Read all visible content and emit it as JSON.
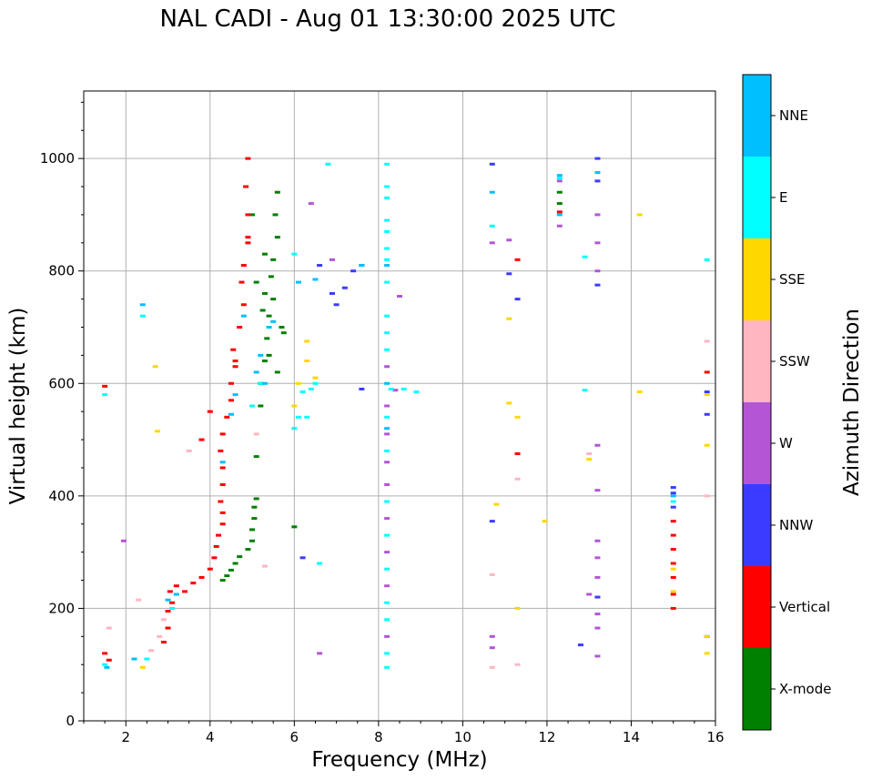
{
  "chart_data": {
    "type": "scatter",
    "title": "NAL CADI - Aug 01 13:30:00 2025 UTC",
    "xlabel": "Frequency (MHz)",
    "ylabel": "Virtual height (km)",
    "xlim": [
      1,
      16
    ],
    "ylim": [
      0,
      1120
    ],
    "xticks": [
      2,
      4,
      6,
      8,
      10,
      12,
      14,
      16
    ],
    "yticks": [
      0,
      200,
      400,
      600,
      800,
      1000
    ],
    "grid": true,
    "colorbar": {
      "label": "Azimuth Direction",
      "categories": [
        {
          "name": "X-mode",
          "color": "#008000"
        },
        {
          "name": "Vertical",
          "color": "#ff0000"
        },
        {
          "name": "NNW",
          "color": "#3b3bff"
        },
        {
          "name": "W",
          "color": "#b455d6"
        },
        {
          "name": "SSW",
          "color": "#ffb6c1"
        },
        {
          "name": "SSE",
          "color": "#ffd700"
        },
        {
          "name": "E",
          "color": "#00ffff"
        },
        {
          "name": "NNE",
          "color": "#00bfff"
        }
      ]
    },
    "series": [
      {
        "name": "X-mode",
        "points": [
          [
            4.3,
            250
          ],
          [
            4.4,
            258
          ],
          [
            4.5,
            268
          ],
          [
            4.6,
            280
          ],
          [
            4.7,
            292
          ],
          [
            4.9,
            305
          ],
          [
            5.0,
            320
          ],
          [
            5.0,
            340
          ],
          [
            5.05,
            360
          ],
          [
            5.05,
            380
          ],
          [
            5.1,
            395
          ],
          [
            5.1,
            470
          ],
          [
            5.2,
            560
          ],
          [
            5.2,
            600
          ],
          [
            5.3,
            640
          ],
          [
            5.35,
            680
          ],
          [
            5.4,
            720
          ],
          [
            5.3,
            760
          ],
          [
            5.45,
            790
          ],
          [
            5.5,
            820
          ],
          [
            5.6,
            860
          ],
          [
            5.55,
            900
          ],
          [
            5.6,
            940
          ],
          [
            5.7,
            700
          ],
          [
            5.25,
            730
          ],
          [
            5.5,
            750
          ],
          [
            5.4,
            650
          ],
          [
            6.0,
            345
          ],
          [
            5.3,
            830
          ],
          [
            5.0,
            900
          ],
          [
            5.1,
            780
          ],
          [
            5.6,
            620
          ],
          [
            5.75,
            690
          ],
          [
            12.3,
            920
          ],
          [
            12.3,
            940
          ],
          [
            15.8,
            150
          ]
        ]
      },
      {
        "name": "Vertical",
        "points": [
          [
            1.5,
            595
          ],
          [
            1.5,
            120
          ],
          [
            1.6,
            108
          ],
          [
            2.9,
            140
          ],
          [
            3.0,
            165
          ],
          [
            3.0,
            195
          ],
          [
            3.1,
            210
          ],
          [
            3.05,
            230
          ],
          [
            3.2,
            240
          ],
          [
            3.4,
            230
          ],
          [
            3.6,
            245
          ],
          [
            3.8,
            255
          ],
          [
            4.0,
            270
          ],
          [
            4.1,
            290
          ],
          [
            4.15,
            310
          ],
          [
            4.2,
            330
          ],
          [
            4.3,
            350
          ],
          [
            4.3,
            370
          ],
          [
            4.25,
            390
          ],
          [
            4.3,
            420
          ],
          [
            4.3,
            450
          ],
          [
            4.25,
            480
          ],
          [
            4.3,
            510
          ],
          [
            4.4,
            540
          ],
          [
            4.5,
            570
          ],
          [
            4.5,
            600
          ],
          [
            4.6,
            630
          ],
          [
            4.55,
            660
          ],
          [
            4.7,
            700
          ],
          [
            4.8,
            740
          ],
          [
            4.75,
            780
          ],
          [
            4.8,
            810
          ],
          [
            4.9,
            850
          ],
          [
            4.9,
            900
          ],
          [
            4.85,
            950
          ],
          [
            4.9,
            1000
          ],
          [
            3.8,
            500
          ],
          [
            4.0,
            550
          ],
          [
            4.9,
            860
          ],
          [
            4.6,
            640
          ],
          [
            12.3,
            905
          ],
          [
            15.0,
            200
          ],
          [
            15.0,
            225
          ],
          [
            15.0,
            255
          ],
          [
            15.0,
            280
          ],
          [
            15.0,
            305
          ],
          [
            15.0,
            330
          ],
          [
            15.0,
            355
          ],
          [
            15.8,
            620
          ],
          [
            11.3,
            820
          ],
          [
            11.3,
            475
          ]
        ]
      },
      {
        "name": "NNW",
        "points": [
          [
            6.9,
            760
          ],
          [
            7.0,
            740
          ],
          [
            7.2,
            770
          ],
          [
            7.4,
            800
          ],
          [
            7.6,
            590
          ],
          [
            7.6,
            810
          ],
          [
            6.6,
            810
          ],
          [
            10.7,
            990
          ],
          [
            13.2,
            775
          ],
          [
            13.2,
            960
          ],
          [
            13.2,
            1000
          ],
          [
            15.0,
            380
          ],
          [
            15.0,
            405
          ],
          [
            15.0,
            415
          ],
          [
            15.8,
            545
          ],
          [
            15.8,
            585
          ],
          [
            12.8,
            135
          ],
          [
            13.2,
            220
          ],
          [
            11.1,
            795
          ],
          [
            11.3,
            750
          ],
          [
            10.7,
            355
          ],
          [
            6.2,
            290
          ]
        ]
      },
      {
        "name": "W",
        "points": [
          [
            6.6,
            120
          ],
          [
            6.4,
            920
          ],
          [
            6.9,
            820
          ],
          [
            8.5,
            755
          ],
          [
            8.4,
            588
          ],
          [
            8.2,
            630
          ],
          [
            8.2,
            560
          ],
          [
            8.2,
            510
          ],
          [
            8.2,
            460
          ],
          [
            8.2,
            420
          ],
          [
            8.2,
            360
          ],
          [
            8.2,
            300
          ],
          [
            8.2,
            240
          ],
          [
            8.2,
            150
          ],
          [
            10.7,
            850
          ],
          [
            10.7,
            150
          ],
          [
            10.7,
            130
          ],
          [
            12.3,
            880
          ],
          [
            12.3,
            960
          ],
          [
            13.2,
            900
          ],
          [
            13.2,
            850
          ],
          [
            13.2,
            800
          ],
          [
            13.2,
            490
          ],
          [
            13.2,
            410
          ],
          [
            13.2,
            320
          ],
          [
            13.2,
            290
          ],
          [
            13.2,
            255
          ],
          [
            13.2,
            190
          ],
          [
            13.2,
            165
          ],
          [
            13.2,
            115
          ],
          [
            13.0,
            225
          ],
          [
            11.1,
            855
          ],
          [
            1.95,
            320
          ]
        ]
      },
      {
        "name": "SSW",
        "points": [
          [
            1.6,
            165
          ],
          [
            2.6,
            125
          ],
          [
            2.8,
            150
          ],
          [
            2.9,
            180
          ],
          [
            3.5,
            480
          ],
          [
            5.1,
            510
          ],
          [
            5.3,
            275
          ],
          [
            10.7,
            260
          ],
          [
            10.7,
            95
          ],
          [
            11.3,
            430
          ],
          [
            11.3,
            100
          ],
          [
            13.0,
            475
          ],
          [
            15.8,
            675
          ],
          [
            15.8,
            400
          ],
          [
            2.3,
            215
          ]
        ]
      },
      {
        "name": "SSE",
        "points": [
          [
            2.4,
            95
          ],
          [
            2.7,
            630
          ],
          [
            2.75,
            515
          ],
          [
            6.0,
            560
          ],
          [
            6.1,
            600
          ],
          [
            6.3,
            640
          ],
          [
            6.3,
            675
          ],
          [
            6.5,
            610
          ],
          [
            10.8,
            385
          ],
          [
            11.1,
            565
          ],
          [
            11.1,
            715
          ],
          [
            11.3,
            540
          ],
          [
            11.3,
            200
          ],
          [
            11.95,
            355
          ],
          [
            13.0,
            465
          ],
          [
            14.2,
            900
          ],
          [
            14.2,
            585
          ],
          [
            15.0,
            230
          ],
          [
            15.0,
            270
          ],
          [
            15.8,
            490
          ],
          [
            15.8,
            580
          ],
          [
            15.8,
            120
          ],
          [
            15.8,
            150
          ]
        ]
      },
      {
        "name": "E",
        "points": [
          [
            2.4,
            720
          ],
          [
            1.5,
            580
          ],
          [
            1.5,
            100
          ],
          [
            2.5,
            110
          ],
          [
            3.1,
            200
          ],
          [
            5.0,
            560
          ],
          [
            5.2,
            600
          ],
          [
            6.0,
            520
          ],
          [
            6.1,
            540
          ],
          [
            6.2,
            585
          ],
          [
            6.4,
            590
          ],
          [
            6.5,
            600
          ],
          [
            6.3,
            540
          ],
          [
            6.6,
            280
          ],
          [
            6.8,
            990
          ],
          [
            6.0,
            830
          ],
          [
            8.2,
            990
          ],
          [
            8.2,
            950
          ],
          [
            8.2,
            930
          ],
          [
            8.2,
            890
          ],
          [
            8.2,
            870
          ],
          [
            8.2,
            840
          ],
          [
            8.2,
            820
          ],
          [
            8.2,
            780
          ],
          [
            8.2,
            720
          ],
          [
            8.2,
            690
          ],
          [
            8.2,
            660
          ],
          [
            8.3,
            590
          ],
          [
            8.6,
            590
          ],
          [
            8.9,
            585
          ],
          [
            8.2,
            540
          ],
          [
            8.2,
            480
          ],
          [
            8.2,
            390
          ],
          [
            8.2,
            330
          ],
          [
            8.2,
            270
          ],
          [
            8.2,
            210
          ],
          [
            8.2,
            180
          ],
          [
            8.2,
            120
          ],
          [
            8.2,
            95
          ],
          [
            10.7,
            880
          ],
          [
            12.3,
            965
          ],
          [
            12.9,
            825
          ],
          [
            12.9,
            588
          ],
          [
            15.8,
            820
          ],
          [
            15.0,
            390
          ]
        ]
      },
      {
        "name": "NNE",
        "points": [
          [
            2.4,
            740
          ],
          [
            1.55,
            95
          ],
          [
            2.2,
            110
          ],
          [
            3.0,
            215
          ],
          [
            3.2,
            225
          ],
          [
            4.3,
            460
          ],
          [
            4.5,
            545
          ],
          [
            4.6,
            580
          ],
          [
            4.8,
            720
          ],
          [
            5.1,
            620
          ],
          [
            5.2,
            650
          ],
          [
            5.4,
            700
          ],
          [
            5.5,
            710
          ],
          [
            5.3,
            600
          ],
          [
            6.1,
            780
          ],
          [
            6.5,
            785
          ],
          [
            7.6,
            810
          ],
          [
            8.2,
            810
          ],
          [
            8.2,
            600
          ],
          [
            8.2,
            520
          ],
          [
            10.7,
            940
          ],
          [
            12.3,
            900
          ],
          [
            12.3,
            970
          ],
          [
            13.2,
            975
          ],
          [
            15.0,
            400
          ]
        ]
      }
    ]
  }
}
